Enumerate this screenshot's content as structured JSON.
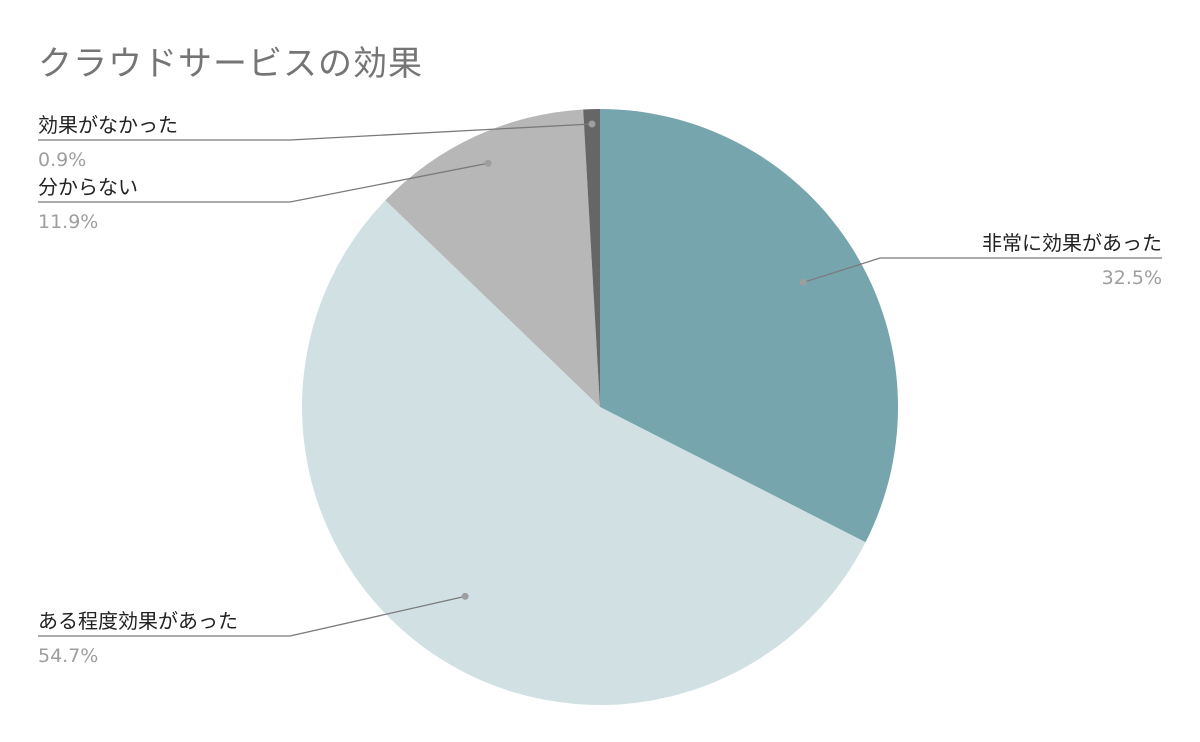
{
  "chart_data": {
    "type": "pie",
    "title": "クラウドサービスの効果",
    "slices": [
      {
        "label": "非常に効果があった",
        "value": 32.5,
        "value_label": "32.5%",
        "color": "#77a5ae"
      },
      {
        "label": "ある程度効果があった",
        "value": 54.7,
        "value_label": "54.7%",
        "color": "#d1e0e3"
      },
      {
        "label": "分からない",
        "value": 11.9,
        "value_label": "11.9%",
        "color": "#b7b7b7"
      },
      {
        "label": "効果がなかった",
        "value": 0.9,
        "value_label": "0.9%",
        "color": "#666666"
      }
    ],
    "start_angle": "12 o'clock",
    "direction": "clockwise",
    "legend": "none (callout labels)"
  }
}
